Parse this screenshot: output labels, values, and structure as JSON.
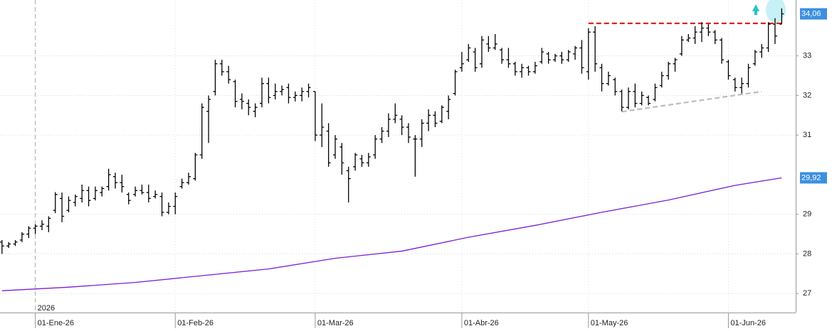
{
  "chart_data": {
    "type": "ohlc",
    "color": "#000000",
    "open": [
      28.3,
      28.2,
      28.25,
      28.35,
      28.5,
      28.65,
      28.7,
      28.7,
      29.1,
      29.4,
      29.1,
      29.3,
      29.4,
      29.6,
      29.4,
      29.55,
      29.7,
      29.95,
      29.8,
      29.5,
      29.5,
      29.6,
      29.55,
      29.45,
      29.45,
      29.05,
      29.2,
      29.7,
      29.8,
      29.9,
      30.5,
      31.6,
      32.1,
      32.8,
      32.6,
      32.35,
      31.9,
      31.8,
      31.6,
      31.8,
      32.3,
      32.0,
      32.1,
      32.2,
      31.95,
      32.0,
      32.1,
      32.1,
      31.0,
      31.1,
      30.5,
      30.7,
      30.1,
      30.2,
      30.4,
      30.3,
      30.5,
      30.9,
      31.1,
      31.4,
      31.4,
      31.2,
      30.9,
      30.9,
      31.3,
      31.5,
      31.35,
      31.6,
      32.05,
      32.7,
      32.9,
      33.1,
      32.8,
      33.3,
      33.2,
      33.15,
      32.9,
      32.8,
      32.6,
      32.7,
      32.6,
      32.85,
      33.05,
      32.9,
      33.0,
      32.9,
      33.05,
      33.2,
      32.6,
      33.6,
      32.7,
      32.3,
      32.4,
      32.1,
      31.7,
      32.1,
      31.8,
      31.95,
      31.9,
      32.25,
      32.5,
      32.8,
      33.05,
      33.4,
      33.45,
      33.6,
      33.7,
      33.6,
      33.4,
      32.85,
      32.4,
      32.2,
      32.3,
      32.8,
      33.1,
      33.2,
      33.8,
      33.8
    ],
    "high": [
      28.35,
      28.3,
      28.35,
      28.55,
      28.7,
      28.75,
      28.85,
      28.95,
      29.56,
      29.55,
      29.45,
      29.5,
      29.75,
      29.7,
      29.7,
      29.7,
      30.15,
      30.05,
      30.0,
      29.55,
      29.7,
      29.75,
      29.75,
      29.6,
      29.55,
      29.3,
      29.55,
      29.9,
      30.05,
      30.55,
      31.8,
      32.0,
      32.9,
      32.9,
      32.75,
      32.4,
      32.05,
      31.9,
      31.8,
      32.45,
      32.45,
      32.3,
      32.25,
      32.3,
      32.1,
      32.2,
      32.3,
      32.1,
      31.8,
      31.3,
      31.0,
      30.8,
      30.2,
      30.55,
      30.5,
      30.55,
      31.0,
      31.2,
      31.55,
      31.8,
      31.5,
      31.3,
      31.0,
      31.4,
      31.65,
      31.6,
      31.75,
      32.0,
      32.65,
      33.1,
      33.3,
      33.2,
      33.5,
      33.5,
      33.55,
      33.2,
      33.2,
      32.85,
      32.8,
      32.75,
      32.85,
      33.2,
      33.1,
      33.05,
      33.1,
      33.15,
      33.25,
      33.4,
      33.7,
      33.75,
      32.8,
      32.6,
      32.45,
      32.15,
      32.2,
      32.3,
      32.1,
      32.0,
      32.3,
      32.6,
      32.85,
      32.95,
      33.5,
      33.55,
      33.75,
      33.85,
      33.8,
      33.65,
      33.45,
      32.9,
      32.45,
      32.45,
      32.8,
      33.15,
      33.3,
      33.85,
      33.95,
      34.2
    ],
    "low": [
      28.0,
      28.15,
      28.2,
      28.3,
      28.4,
      28.5,
      28.6,
      28.55,
      29.03,
      28.8,
      29.05,
      29.2,
      29.3,
      29.2,
      29.35,
      29.45,
      29.6,
      29.65,
      29.55,
      29.25,
      29.45,
      29.5,
      29.3,
      29.4,
      28.95,
      29.0,
      29.0,
      29.65,
      29.75,
      29.85,
      30.4,
      30.8,
      32.0,
      32.5,
      32.3,
      31.7,
      31.65,
      31.5,
      31.45,
      31.7,
      31.8,
      31.9,
      32.0,
      31.8,
      31.85,
      31.85,
      31.95,
      30.85,
      30.7,
      30.2,
      30.4,
      30.0,
      29.3,
      30.1,
      30.2,
      30.2,
      30.4,
      30.8,
      30.95,
      31.3,
      31.0,
      30.8,
      29.95,
      30.7,
      31.1,
      31.2,
      31.3,
      31.4,
      32.0,
      32.6,
      32.85,
      32.6,
      32.7,
      33.1,
      33.15,
      32.8,
      32.7,
      32.5,
      32.45,
      32.5,
      32.55,
      32.8,
      32.8,
      32.85,
      32.8,
      32.85,
      32.9,
      32.55,
      32.4,
      32.6,
      32.1,
      32.25,
      32.0,
      31.6,
      31.65,
      31.7,
      31.75,
      31.75,
      31.85,
      32.2,
      32.4,
      32.6,
      33.0,
      33.35,
      33.3,
      33.35,
      33.5,
      33.3,
      32.8,
      32.4,
      32.1,
      32.05,
      32.2,
      32.75,
      32.95,
      33.1,
      33.3,
      33.8
    ],
    "close": [
      28.2,
      28.25,
      28.3,
      28.5,
      28.65,
      28.7,
      28.75,
      28.9,
      29.5,
      28.95,
      29.35,
      29.45,
      29.6,
      29.35,
      29.6,
      29.65,
      30.0,
      29.8,
      29.7,
      29.35,
      29.6,
      29.55,
      29.4,
      29.5,
      29.05,
      29.2,
      29.45,
      29.8,
      29.95,
      30.5,
      31.7,
      31.9,
      32.8,
      32.6,
      32.4,
      31.85,
      31.85,
      31.7,
      31.7,
      32.3,
      31.95,
      32.1,
      32.15,
      31.95,
      32.0,
      32.1,
      32.2,
      31.0,
      31.2,
      30.3,
      30.9,
      30.3,
      29.9,
      30.5,
      30.3,
      30.45,
      30.9,
      31.1,
      31.4,
      31.5,
      31.2,
      30.95,
      30.9,
      31.3,
      31.5,
      31.3,
      31.7,
      31.9,
      32.6,
      32.8,
      33.2,
      32.7,
      33.4,
      33.2,
      33.3,
      32.9,
      32.8,
      32.6,
      32.7,
      32.6,
      32.75,
      33.1,
      32.9,
      33.0,
      32.9,
      33.1,
      33.2,
      32.7,
      33.6,
      32.8,
      32.3,
      32.5,
      32.1,
      31.7,
      32.1,
      31.8,
      32.0,
      31.8,
      32.2,
      32.5,
      32.8,
      32.9,
      33.4,
      33.45,
      33.6,
      33.7,
      33.6,
      33.4,
      32.9,
      32.5,
      32.2,
      32.3,
      32.7,
      33.1,
      33.2,
      33.8,
      33.5,
      34.06
    ],
    "xlim": [
      -0.3,
      119.1
    ],
    "xticks": [
      {
        "value": 5,
        "label": "01-Ene-26"
      },
      {
        "value": 26,
        "label": "01-Feb-26"
      },
      {
        "value": 47,
        "label": "01-Mar-26"
      },
      {
        "value": 69,
        "label": "01-Abr-26"
      },
      {
        "value": 88,
        "label": "01-May-26"
      },
      {
        "value": 109,
        "label": "01-Jun-26"
      }
    ],
    "year_marker": {
      "value": 5,
      "label": "2026"
    },
    "ylim": [
      26.52,
      34.41
    ],
    "yticks": [
      27,
      28,
      29,
      31,
      32,
      33
    ],
    "grid": true,
    "price_labels": [
      {
        "value": 34.06,
        "label": "34,06",
        "color": "#3d8fe0"
      },
      {
        "value": 29.92,
        "label": "29,92",
        "color": "#3d8fe0"
      }
    ],
    "lines": [
      {
        "x": [
          0,
          10,
          20,
          30,
          40,
          50,
          60,
          70,
          80,
          90,
          100,
          110,
          117
        ],
        "values": [
          27.07,
          27.16,
          27.28,
          27.45,
          27.62,
          27.89,
          28.07,
          28.42,
          28.72,
          29.05,
          29.36,
          29.73,
          29.92
        ],
        "color": "#7a1fd6",
        "dash": false
      },
      {
        "x": [
          88,
          117
        ],
        "values": [
          33.82,
          33.82
        ],
        "color": "#e02020",
        "dash": true
      },
      {
        "x": [
          93,
          114
        ],
        "values": [
          31.59,
          32.1
        ],
        "color": "#bdbdbd",
        "dash": true
      }
    ]
  }
}
